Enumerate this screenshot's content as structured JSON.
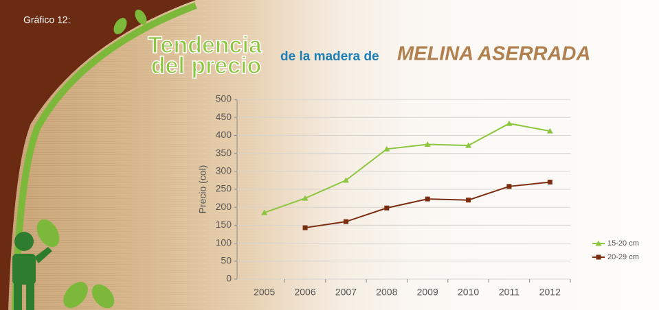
{
  "chart_data": {
    "type": "line",
    "label": "Gráfico 12:",
    "title_lines": [
      "Tendencia",
      "del precio"
    ],
    "subtitle": "de la madera de",
    "title_emphasis": "MELINA ASERRADA",
    "y_label": "Precio (col)",
    "categories": [
      "2005",
      "2006",
      "2007",
      "2008",
      "2009",
      "2010",
      "2011",
      "2012"
    ],
    "series": [
      {
        "name": "15-20 cm",
        "color": "#8cc63f",
        "marker": "triangle",
        "values": [
          185,
          225,
          275,
          362,
          375,
          372,
          433,
          412
        ]
      },
      {
        "name": "20-29 cm",
        "color": "#7b2d12",
        "marker": "square",
        "values": [
          null,
          143,
          160,
          198,
          223,
          220,
          258,
          270
        ]
      }
    ],
    "ylim": [
      0,
      500
    ],
    "yticks": [
      0,
      50,
      100,
      150,
      200,
      250,
      300,
      350,
      400,
      450,
      500
    ],
    "grid": true,
    "legend": "right"
  }
}
